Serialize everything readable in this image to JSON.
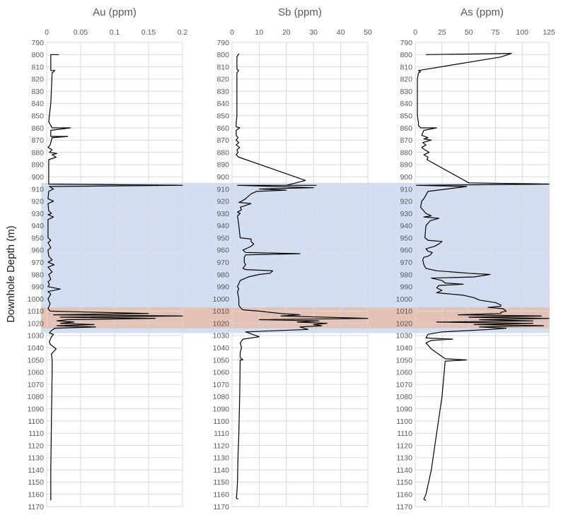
{
  "chart_data": {
    "type": "line",
    "y_axis_label": "Downhole Depth (m)",
    "y_range": [
      790,
      1170
    ],
    "y_reversed": true,
    "y_tick_step": 10,
    "grid": true,
    "bands": [
      {
        "from": 905,
        "to": 1028,
        "color": "#c5d3ee"
      },
      {
        "from": 1007,
        "to": 1024,
        "color": "#e8b79f"
      }
    ],
    "panels": [
      {
        "title": "Au (ppm)",
        "x_range": [
          0,
          0.2
        ],
        "x_ticks": [
          "0",
          "0.05",
          "0.1",
          "0.15",
          "0.2"
        ],
        "points": [
          [
            0.018,
            800
          ],
          [
            0.006,
            800
          ],
          [
            0.006,
            813
          ],
          [
            0.012,
            813
          ],
          [
            0.008,
            815
          ],
          [
            0.006,
            840
          ],
          [
            0.004,
            850
          ],
          [
            0.003,
            855
          ],
          [
            0.008,
            860
          ],
          [
            0.035,
            860
          ],
          [
            0.006,
            862
          ],
          [
            0.006,
            867
          ],
          [
            0.031,
            867
          ],
          [
            0.008,
            868
          ],
          [
            0.005,
            874
          ],
          [
            0.002,
            876
          ],
          [
            0.008,
            878
          ],
          [
            0.004,
            880
          ],
          [
            0.015,
            881
          ],
          [
            0.008,
            882
          ],
          [
            0.014,
            884
          ],
          [
            0.003,
            886
          ],
          [
            0.003,
            906
          ],
          [
            0.2,
            907
          ],
          [
            0.004,
            908
          ],
          [
            0.01,
            910
          ],
          [
            0.003,
            912
          ],
          [
            0.002,
            918
          ],
          [
            0.01,
            920
          ],
          [
            0.002,
            922
          ],
          [
            0.003,
            928
          ],
          [
            0.007,
            930
          ],
          [
            0.002,
            931
          ],
          [
            0.01,
            933
          ],
          [
            0.002,
            935
          ],
          [
            0.002,
            950
          ],
          [
            0.006,
            952
          ],
          [
            0.002,
            954
          ],
          [
            0.006,
            958
          ],
          [
            0.002,
            960
          ],
          [
            0.003,
            965
          ],
          [
            0.008,
            968
          ],
          [
            0.002,
            970
          ],
          [
            0.011,
            972
          ],
          [
            0.002,
            974
          ],
          [
            0.008,
            978
          ],
          [
            0.003,
            980
          ],
          [
            0.006,
            984
          ],
          [
            0.002,
            986
          ],
          [
            0.004,
            988
          ],
          [
            0.002,
            990
          ],
          [
            0.02,
            992
          ],
          [
            0.002,
            994
          ],
          [
            0.006,
            996
          ],
          [
            0.002,
            1000
          ],
          [
            0.005,
            1004
          ],
          [
            0.002,
            1008
          ],
          [
            0.005,
            1010
          ],
          [
            0.15,
            1012
          ],
          [
            0.01,
            1013
          ],
          [
            0.2,
            1014
          ],
          [
            0.02,
            1015
          ],
          [
            0.16,
            1016
          ],
          [
            0.03,
            1017
          ],
          [
            0.015,
            1018
          ],
          [
            0.04,
            1019
          ],
          [
            0.02,
            1020
          ],
          [
            0.07,
            1021
          ],
          [
            0.015,
            1022
          ],
          [
            0.072,
            1023
          ],
          [
            0.012,
            1024
          ],
          [
            0.007,
            1026
          ],
          [
            0.004,
            1028
          ],
          [
            0.01,
            1029
          ],
          [
            0.007,
            1031
          ],
          [
            0.004,
            1035
          ],
          [
            0.005,
            1037
          ],
          [
            0.014,
            1041
          ],
          [
            0.007,
            1045
          ],
          [
            0.008,
            1050
          ],
          [
            0.008,
            1060
          ],
          [
            0.007,
            1100
          ],
          [
            0.006,
            1140
          ],
          [
            0.006,
            1165
          ]
        ]
      },
      {
        "title": "Sb (ppm)",
        "x_range": [
          0,
          50
        ],
        "x_ticks": [
          "0",
          "10",
          "20",
          "30",
          "40",
          "50"
        ],
        "points": [
          [
            2.5,
            799
          ],
          [
            1.8,
            802
          ],
          [
            1.8,
            812
          ],
          [
            2.4,
            813
          ],
          [
            1.8,
            815
          ],
          [
            1.8,
            850
          ],
          [
            1.5,
            856
          ],
          [
            1.5,
            859
          ],
          [
            2.8,
            860
          ],
          [
            1.5,
            862
          ],
          [
            1.5,
            866
          ],
          [
            2.2,
            868
          ],
          [
            1.5,
            870
          ],
          [
            2.5,
            872
          ],
          [
            1.5,
            874
          ],
          [
            2.8,
            876
          ],
          [
            1.8,
            878
          ],
          [
            2.2,
            880
          ],
          [
            1.5,
            882
          ],
          [
            2.5,
            884
          ],
          [
            27,
            903
          ],
          [
            20,
            907
          ],
          [
            31,
            907
          ],
          [
            2,
            907
          ],
          [
            30,
            909
          ],
          [
            10,
            910
          ],
          [
            20,
            911
          ],
          [
            9,
            912
          ],
          [
            8,
            913
          ],
          [
            7,
            914
          ],
          [
            6,
            916
          ],
          [
            5,
            918
          ],
          [
            3.5,
            920
          ],
          [
            2.5,
            921
          ],
          [
            7,
            922
          ],
          [
            3,
            925
          ],
          [
            3.5,
            927
          ],
          [
            2,
            929
          ],
          [
            3,
            930
          ],
          [
            2,
            932
          ],
          [
            2.5,
            940
          ],
          [
            3,
            950
          ],
          [
            7,
            951
          ],
          [
            7,
            953
          ],
          [
            8,
            955
          ],
          [
            7,
            957
          ],
          [
            6,
            958
          ],
          [
            4,
            960
          ],
          [
            5,
            962
          ],
          [
            25,
            963
          ],
          [
            5,
            964
          ],
          [
            4.5,
            966
          ],
          [
            4.5,
            970
          ],
          [
            5,
            972
          ],
          [
            4,
            975
          ],
          [
            5,
            976
          ],
          [
            15,
            977
          ],
          [
            14,
            979
          ],
          [
            10,
            980
          ],
          [
            6,
            982
          ],
          [
            5,
            983
          ],
          [
            3,
            985
          ],
          [
            2,
            990
          ],
          [
            2.5,
            992
          ],
          [
            2,
            994
          ],
          [
            2.5,
            1000
          ],
          [
            2.5,
            1005
          ],
          [
            3,
            1007
          ],
          [
            4,
            1009
          ],
          [
            10,
            1010
          ],
          [
            18,
            1012
          ],
          [
            25,
            1013
          ],
          [
            18,
            1014
          ],
          [
            50,
            1016
          ],
          [
            10,
            1017
          ],
          [
            32,
            1018
          ],
          [
            24,
            1019
          ],
          [
            35,
            1020
          ],
          [
            30,
            1021
          ],
          [
            33,
            1022
          ],
          [
            25,
            1023
          ],
          [
            28,
            1025
          ],
          [
            5,
            1027
          ],
          [
            10,
            1031
          ],
          [
            4,
            1033
          ],
          [
            3,
            1036
          ],
          [
            3.5,
            1040
          ],
          [
            3,
            1044
          ],
          [
            3,
            1048
          ],
          [
            4,
            1050
          ],
          [
            3,
            1050
          ],
          [
            2.8,
            1080
          ],
          [
            2.5,
            1110
          ],
          [
            2.2,
            1130
          ],
          [
            2,
            1150
          ],
          [
            1.8,
            1158
          ],
          [
            1.6,
            1163
          ],
          [
            2.2,
            1164
          ]
        ]
      },
      {
        "title": "As (ppm)",
        "x_range": [
          0,
          125
        ],
        "x_ticks": [
          "0",
          "25",
          "50",
          "75",
          "100",
          "125"
        ],
        "points": [
          [
            10,
            800
          ],
          [
            90,
            799
          ],
          [
            80,
            802
          ],
          [
            3,
            813
          ],
          [
            5,
            814
          ],
          [
            3,
            815
          ],
          [
            2,
            820
          ],
          [
            2,
            840
          ],
          [
            2,
            850
          ],
          [
            3,
            856
          ],
          [
            3,
            858
          ],
          [
            5,
            860
          ],
          [
            20,
            860
          ],
          [
            8,
            862
          ],
          [
            6,
            866
          ],
          [
            12,
            868
          ],
          [
            8,
            869
          ],
          [
            15,
            870
          ],
          [
            7,
            872
          ],
          [
            10,
            874
          ],
          [
            6,
            876
          ],
          [
            9,
            878
          ],
          [
            13,
            880
          ],
          [
            8,
            882
          ],
          [
            12,
            884
          ],
          [
            11,
            886
          ],
          [
            50,
            905
          ],
          [
            125,
            906
          ],
          [
            1,
            907
          ],
          [
            48,
            908
          ],
          [
            30,
            910
          ],
          [
            12,
            912
          ],
          [
            8,
            918
          ],
          [
            6,
            920
          ],
          [
            5,
            925
          ],
          [
            8,
            928
          ],
          [
            10,
            930
          ],
          [
            15,
            932
          ],
          [
            8,
            933
          ],
          [
            22,
            934
          ],
          [
            14,
            936
          ],
          [
            10,
            940
          ],
          [
            9,
            950
          ],
          [
            12,
            952
          ],
          [
            25,
            953
          ],
          [
            22,
            955
          ],
          [
            18,
            957
          ],
          [
            10,
            959
          ],
          [
            12,
            961
          ],
          [
            16,
            962
          ],
          [
            14,
            964
          ],
          [
            12,
            965
          ],
          [
            8,
            966
          ],
          [
            7,
            968
          ],
          [
            8,
            972
          ],
          [
            10,
            975
          ],
          [
            20,
            977
          ],
          [
            35,
            978
          ],
          [
            50,
            979
          ],
          [
            70,
            980
          ],
          [
            55,
            982
          ],
          [
            15,
            983
          ],
          [
            25,
            985
          ],
          [
            28,
            987
          ],
          [
            45,
            988
          ],
          [
            22,
            989
          ],
          [
            20,
            991
          ],
          [
            25,
            993
          ],
          [
            20,
            995
          ],
          [
            45,
            997
          ],
          [
            55,
            999
          ],
          [
            60,
            1001
          ],
          [
            75,
            1003
          ],
          [
            80,
            1005
          ],
          [
            80,
            1006
          ],
          [
            68,
            1007
          ],
          [
            82,
            1008
          ],
          [
            85,
            1010
          ],
          [
            80,
            1011
          ],
          [
            80,
            1012
          ],
          [
            40,
            1013
          ],
          [
            118,
            1014
          ],
          [
            50,
            1015
          ],
          [
            125,
            1016
          ],
          [
            60,
            1017
          ],
          [
            110,
            1018
          ],
          [
            20,
            1019
          ],
          [
            110,
            1020
          ],
          [
            55,
            1021
          ],
          [
            120,
            1022
          ],
          [
            60,
            1023
          ],
          [
            85,
            1024
          ],
          [
            70,
            1025
          ],
          [
            25,
            1027
          ],
          [
            12,
            1029
          ],
          [
            10,
            1032
          ],
          [
            35,
            1033
          ],
          [
            15,
            1034
          ],
          [
            10,
            1036
          ],
          [
            15,
            1041
          ],
          [
            28,
            1049
          ],
          [
            48,
            1050
          ],
          [
            28,
            1051
          ],
          [
            25,
            1080
          ],
          [
            20,
            1110
          ],
          [
            15,
            1140
          ],
          [
            10,
            1160
          ],
          [
            8,
            1164
          ],
          [
            10,
            1165
          ]
        ]
      }
    ]
  }
}
